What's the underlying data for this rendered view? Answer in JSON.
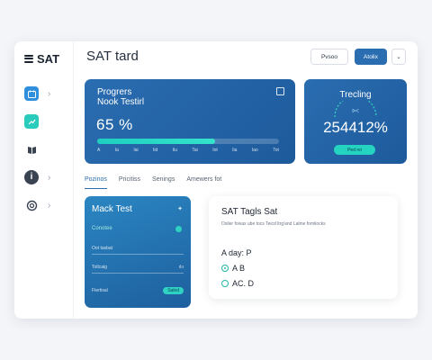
{
  "sidebar": {
    "brand": "SAT",
    "items": [
      {
        "icon": "calendar-icon",
        "chevron": "›"
      },
      {
        "icon": "trend-icon"
      },
      {
        "icon": "book-icon"
      },
      {
        "icon": "info-icon",
        "chevron": "›"
      },
      {
        "icon": "settings-icon",
        "chevron": "›"
      }
    ]
  },
  "header": {
    "title": "SAT tard",
    "buttons": [
      "Pvsoo",
      "Atolix",
      "⌄"
    ]
  },
  "progress_card": {
    "title": "Progrers",
    "subtitle": "Nook Testirl",
    "percent_text": "65 %",
    "progress": 0.65,
    "ticks": [
      "A",
      "Ia",
      "Iai",
      "Iid",
      "Iiu",
      "Tai",
      "Iot",
      "Iia",
      "Iao",
      "Tot"
    ]
  },
  "tracking_card": {
    "title": "Trecling",
    "arc_label": "ᐅᐸ",
    "value": "254412%",
    "button": "Ped rei"
  },
  "tabs": [
    "Pozinos",
    "Pricitiss",
    "Senings",
    "Amewers fot"
  ],
  "mock_card": {
    "title": "Mack Test",
    "course": "Conotee",
    "rows": [
      {
        "label": "Oot tasbat",
        "extra": ""
      },
      {
        "label": "Totlcaig",
        "extra": "ılıı"
      },
      {
        "label": "Ftertisal",
        "extra": "Saled"
      }
    ]
  },
  "tag_card": {
    "title": "SAT Tagls Sat",
    "desc": "Oxiler foivax ube tocs Teicd ltrg'and Lalme fomilocks",
    "question": "A day: P",
    "options": [
      {
        "label": "A B",
        "checked": true
      },
      {
        "label": "AC. D",
        "checked": false
      }
    ]
  },
  "colors": {
    "primary": "#2a6db0",
    "accent": "#24d3c0",
    "window_bg": "#ffffff",
    "page_bg": "#f3f5f8"
  }
}
